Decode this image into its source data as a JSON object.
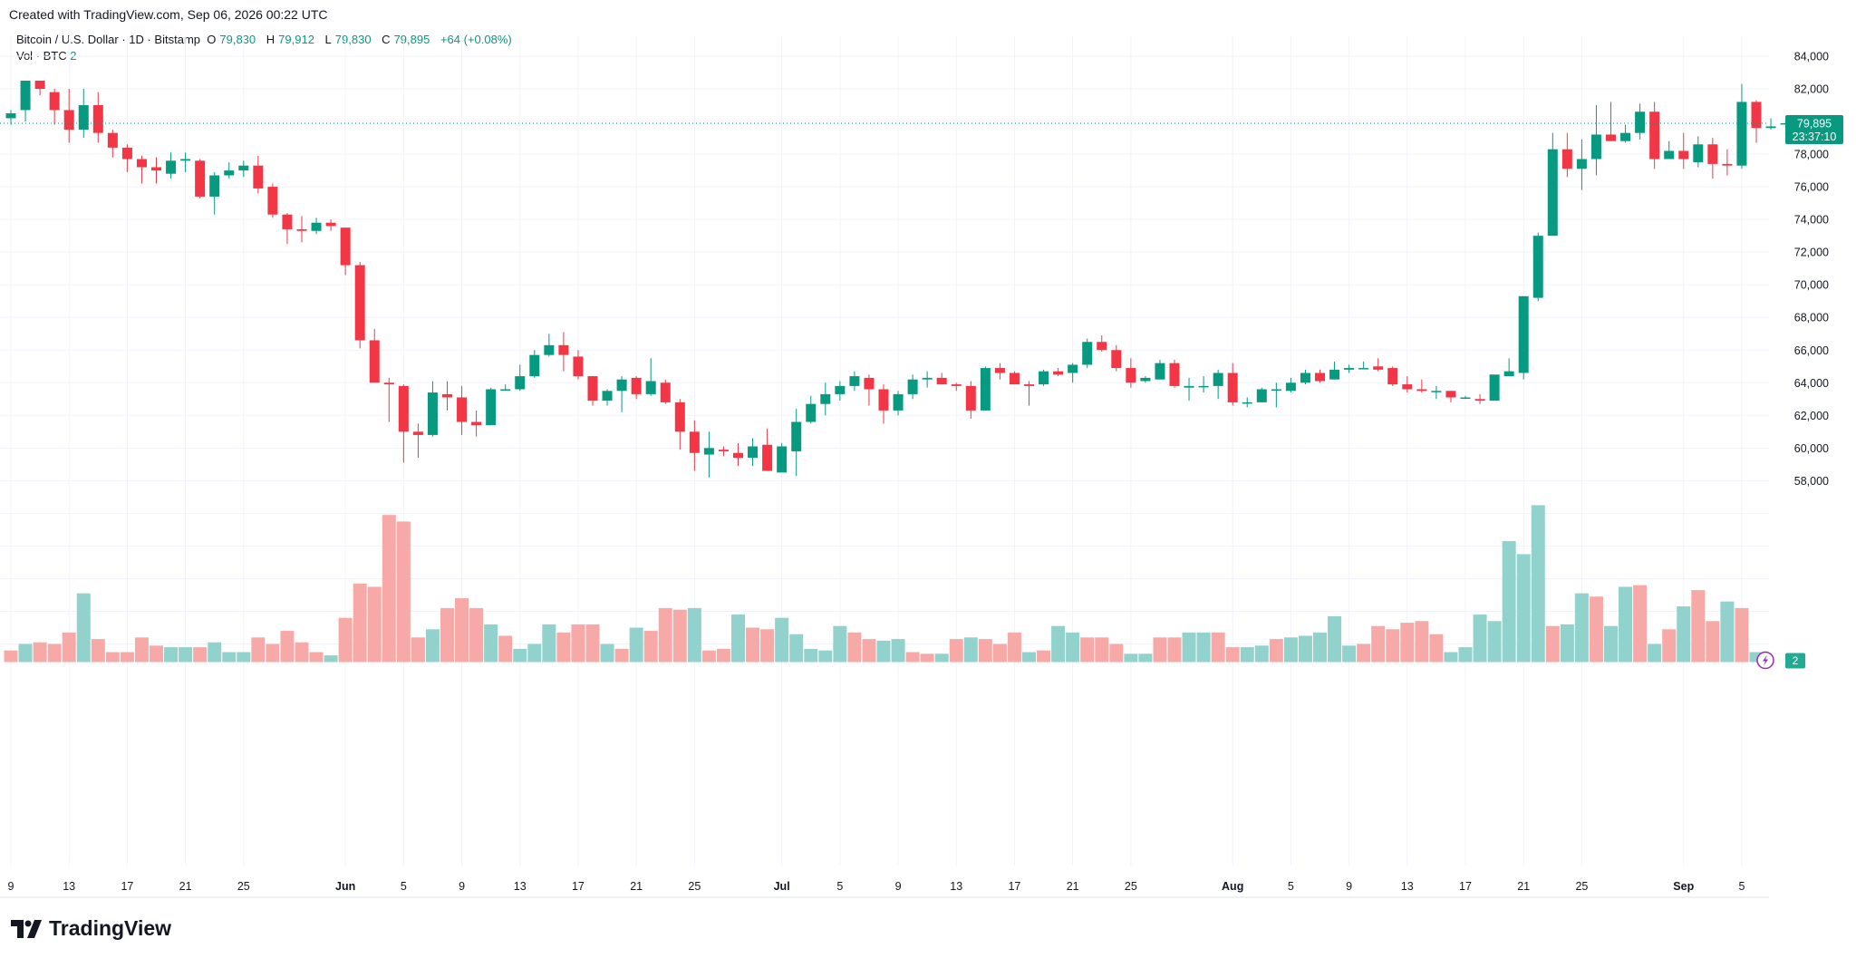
{
  "header": {
    "created_text": "Created with TradingView.com, Sep 06, 2026 00:22 UTC"
  },
  "legend": {
    "symbol": "Bitcoin / U.S. Dollar · 1D · Bitstamp",
    "open_label": "O",
    "open_value": "79,830",
    "high_label": "H",
    "high_value": "79,912",
    "low_label": "L",
    "low_value": "79,830",
    "close_label": "C",
    "close_value": "79,895",
    "change": "+64 (+0.08%)",
    "volume_label": "Vol · BTC",
    "volume_value": "2"
  },
  "price_tag": {
    "price": "79,895",
    "countdown": "23:37:10"
  },
  "volume_tag": "2",
  "brand": "TradingView",
  "colors": {
    "up": "#089981",
    "down": "#F23645",
    "vol_up": "#92D2CC",
    "vol_down": "#F7A9A7",
    "grid": "#F0F3FA",
    "axis_text": "#131722"
  },
  "chart_data": {
    "type": "candlestick",
    "ylim": [
      57000,
      85000
    ],
    "y_ticks": [
      58000,
      60000,
      62000,
      64000,
      66000,
      68000,
      70000,
      72000,
      74000,
      76000,
      78000,
      80000,
      82000,
      84000
    ],
    "y_tick_labels": [
      "58,000",
      "60,000",
      "62,000",
      "64,000",
      "66,000",
      "68,000",
      "70,000",
      "72,000",
      "74,000",
      "76,000",
      "78,000",
      "80,000",
      "82,000",
      "84,000"
    ],
    "vol_ticks": [
      48000,
      50000,
      52000,
      54000,
      56000
    ],
    "x_ticks": [
      {
        "i": 0,
        "label": "9"
      },
      {
        "i": 4,
        "label": "13"
      },
      {
        "i": 8,
        "label": "17"
      },
      {
        "i": 12,
        "label": "21"
      },
      {
        "i": 16,
        "label": "25"
      },
      {
        "i": 23,
        "label": "Jun"
      },
      {
        "i": 27,
        "label": "5"
      },
      {
        "i": 31,
        "label": "9"
      },
      {
        "i": 35,
        "label": "13"
      },
      {
        "i": 39,
        "label": "17"
      },
      {
        "i": 43,
        "label": "21"
      },
      {
        "i": 47,
        "label": "25"
      },
      {
        "i": 53,
        "label": "Jul"
      },
      {
        "i": 57,
        "label": "5"
      },
      {
        "i": 61,
        "label": "9"
      },
      {
        "i": 65,
        "label": "13"
      },
      {
        "i": 69,
        "label": "17"
      },
      {
        "i": 73,
        "label": "21"
      },
      {
        "i": 77,
        "label": "25"
      },
      {
        "i": 84,
        "label": "Aug"
      },
      {
        "i": 88,
        "label": "5"
      },
      {
        "i": 92,
        "label": "9"
      },
      {
        "i": 96,
        "label": "13"
      },
      {
        "i": 100,
        "label": "17"
      },
      {
        "i": 104,
        "label": "21"
      },
      {
        "i": 108,
        "label": "25"
      },
      {
        "i": 115,
        "label": "Sep"
      },
      {
        "i": 119,
        "label": "5"
      }
    ],
    "bold_tick_labels": [
      "Jun",
      "Jul",
      "Aug",
      "Sep"
    ],
    "last_price": 79895,
    "candles": [
      [
        80200,
        80500,
        79800,
        80700
      ],
      [
        80700,
        82500,
        80000,
        82500
      ],
      [
        82500,
        82000,
        81600,
        82500
      ],
      [
        81800,
        80700,
        79800,
        82000
      ],
      [
        80700,
        79500,
        78700,
        82000
      ],
      [
        79500,
        81000,
        79000,
        82000
      ],
      [
        81000,
        79300,
        78700,
        81800
      ],
      [
        79300,
        78400,
        77800,
        79500
      ],
      [
        78400,
        77700,
        76900,
        78600
      ],
      [
        77700,
        77200,
        76200,
        77900
      ],
      [
        77200,
        77000,
        76200,
        77800
      ],
      [
        76800,
        77600,
        76500,
        78100
      ],
      [
        77600,
        77700,
        76900,
        78100
      ],
      [
        77600,
        75400,
        75300,
        77700
      ],
      [
        75400,
        76700,
        74300,
        76900
      ],
      [
        76700,
        77000,
        76500,
        77500
      ],
      [
        77000,
        77300,
        76600,
        77600
      ],
      [
        77300,
        75900,
        75600,
        77900
      ],
      [
        76000,
        74300,
        74100,
        76200
      ],
      [
        74300,
        73400,
        72500,
        74400
      ],
      [
        73400,
        73300,
        72600,
        74200
      ],
      [
        73300,
        73800,
        73100,
        74100
      ],
      [
        73800,
        73600,
        73300,
        74000
      ],
      [
        73500,
        71200,
        70600,
        73500
      ],
      [
        71200,
        66600,
        66100,
        71400
      ],
      [
        66600,
        64000,
        64000,
        67300
      ],
      [
        64000,
        63900,
        61600,
        64300
      ],
      [
        63800,
        61000,
        59100,
        63900
      ],
      [
        61000,
        60800,
        59400,
        61500
      ],
      [
        60800,
        63400,
        60700,
        64100
      ],
      [
        63300,
        63100,
        62300,
        64100
      ],
      [
        63100,
        61600,
        60800,
        63800
      ],
      [
        61600,
        61400,
        60700,
        62300
      ],
      [
        61400,
        63600,
        61400,
        63700
      ],
      [
        63600,
        63600,
        63500,
        63900
      ],
      [
        63600,
        64400,
        63500,
        65100
      ],
      [
        64400,
        65700,
        64300,
        66000
      ],
      [
        65700,
        66300,
        65600,
        67000
      ],
      [
        66300,
        65700,
        64700,
        67100
      ],
      [
        65600,
        64400,
        64200,
        66000
      ],
      [
        64400,
        62900,
        62600,
        64400
      ],
      [
        62900,
        63500,
        62600,
        63600
      ],
      [
        63500,
        64200,
        62200,
        64400
      ],
      [
        64300,
        63300,
        63000,
        64400
      ],
      [
        63300,
        64100,
        63200,
        65500
      ],
      [
        64000,
        62800,
        62700,
        64200
      ],
      [
        62800,
        61000,
        59900,
        63000
      ],
      [
        61000,
        59700,
        58600,
        61700
      ],
      [
        59600,
        60000,
        58200,
        61000
      ],
      [
        59900,
        59800,
        59500,
        60100
      ],
      [
        59700,
        59400,
        58900,
        60300
      ],
      [
        59400,
        60100,
        58900,
        60600
      ],
      [
        60200,
        58600,
        58600,
        61200
      ],
      [
        58500,
        60100,
        58600,
        60300
      ],
      [
        59800,
        61600,
        58300,
        62400
      ],
      [
        61600,
        62700,
        61500,
        63200
      ],
      [
        62700,
        63300,
        62000,
        64000
      ],
      [
        63300,
        63800,
        62900,
        64100
      ],
      [
        63800,
        64400,
        63500,
        64700
      ],
      [
        64300,
        63600,
        62600,
        64500
      ],
      [
        63600,
        62300,
        61500,
        63900
      ],
      [
        62300,
        63300,
        62000,
        63500
      ],
      [
        63300,
        64200,
        63000,
        64500
      ],
      [
        64200,
        64300,
        63700,
        64700
      ],
      [
        64300,
        63900,
        63900,
        64600
      ],
      [
        63900,
        63800,
        63500,
        64000
      ],
      [
        63800,
        62300,
        61800,
        64100
      ],
      [
        62300,
        64900,
        62300,
        65000
      ],
      [
        64900,
        64600,
        64200,
        65200
      ],
      [
        64600,
        63900,
        63900,
        64700
      ],
      [
        63900,
        63800,
        62600,
        64100
      ],
      [
        63900,
        64700,
        63800,
        64800
      ],
      [
        64700,
        64500,
        64400,
        64900
      ],
      [
        64600,
        65100,
        64000,
        65200
      ],
      [
        65100,
        66500,
        64900,
        66700
      ],
      [
        66500,
        66000,
        65900,
        66900
      ],
      [
        66000,
        64900,
        64700,
        66300
      ],
      [
        64900,
        64000,
        63700,
        65500
      ],
      [
        64100,
        64300,
        64000,
        64400
      ],
      [
        64200,
        65200,
        64200,
        65400
      ],
      [
        65200,
        63800,
        63700,
        65400
      ],
      [
        63700,
        63800,
        62900,
        64300
      ],
      [
        63800,
        63800,
        63400,
        64400
      ],
      [
        63800,
        64600,
        63000,
        64800
      ],
      [
        64600,
        62800,
        62600,
        65200
      ],
      [
        62800,
        62800,
        62500,
        63100
      ],
      [
        62800,
        63600,
        62800,
        63700
      ],
      [
        63600,
        63600,
        62500,
        64000
      ],
      [
        63500,
        64000,
        63400,
        64300
      ],
      [
        64000,
        64600,
        63900,
        64800
      ],
      [
        64600,
        64100,
        64000,
        64800
      ],
      [
        64200,
        64800,
        64200,
        65300
      ],
      [
        64800,
        64900,
        64600,
        65100
      ],
      [
        64900,
        64900,
        64900,
        65300
      ],
      [
        65000,
        64800,
        64700,
        65500
      ],
      [
        64900,
        63900,
        63800,
        65000
      ],
      [
        63900,
        63600,
        63400,
        64400
      ],
      [
        63600,
        63500,
        63400,
        64200
      ],
      [
        63500,
        63500,
        63000,
        63800
      ],
      [
        63500,
        63100,
        62800,
        63500
      ],
      [
        63100,
        63100,
        63000,
        63200
      ],
      [
        63000,
        62900,
        62700,
        63300
      ],
      [
        62900,
        64500,
        62900,
        64500
      ],
      [
        64400,
        64700,
        64500,
        65500
      ],
      [
        64600,
        69300,
        64200,
        69300
      ],
      [
        69200,
        73000,
        69000,
        73200
      ],
      [
        73000,
        78300,
        73000,
        79300
      ],
      [
        78300,
        77100,
        76600,
        79300
      ],
      [
        77100,
        77700,
        75800,
        78900
      ],
      [
        77700,
        79200,
        76700,
        81000
      ],
      [
        79200,
        78800,
        78800,
        81200
      ],
      [
        78800,
        79300,
        78700,
        79800
      ],
      [
        79300,
        80600,
        78900,
        81100
      ],
      [
        80600,
        77700,
        77100,
        81200
      ],
      [
        77700,
        78200,
        77700,
        78800
      ],
      [
        78200,
        77700,
        77100,
        79300
      ],
      [
        77500,
        78600,
        77200,
        79100
      ],
      [
        78600,
        77400,
        76500,
        79000
      ],
      [
        77400,
        77300,
        76700,
        78300
      ],
      [
        77300,
        81200,
        77100,
        82300
      ],
      [
        81200,
        79600,
        78700,
        81300
      ],
      [
        79600,
        79700,
        79500,
        80200
      ],
      [
        79830,
        79895,
        79830,
        79912
      ]
    ],
    "volumes": [
      [
        47600,
        0
      ],
      [
        48000,
        1
      ],
      [
        48100,
        0
      ],
      [
        48000,
        0
      ],
      [
        48700,
        0
      ],
      [
        51100,
        1
      ],
      [
        48300,
        0
      ],
      [
        47500,
        0
      ],
      [
        47500,
        0
      ],
      [
        48400,
        0
      ],
      [
        47900,
        0
      ],
      [
        47800,
        1
      ],
      [
        47800,
        1
      ],
      [
        47800,
        0
      ],
      [
        48100,
        1
      ],
      [
        47500,
        1
      ],
      [
        47500,
        1
      ],
      [
        48400,
        0
      ],
      [
        48000,
        0
      ],
      [
        48800,
        0
      ],
      [
        48100,
        0
      ],
      [
        47500,
        0
      ],
      [
        47300,
        1
      ],
      [
        49600,
        0
      ],
      [
        51700,
        0
      ],
      [
        51500,
        0
      ],
      [
        55900,
        0
      ],
      [
        55500,
        0
      ],
      [
        48400,
        0
      ],
      [
        48900,
        1
      ],
      [
        50200,
        0
      ],
      [
        50800,
        0
      ],
      [
        50200,
        0
      ],
      [
        49200,
        1
      ],
      [
        48500,
        0
      ],
      [
        47700,
        1
      ],
      [
        48000,
        1
      ],
      [
        49200,
        1
      ],
      [
        48700,
        0
      ],
      [
        49200,
        0
      ],
      [
        49200,
        0
      ],
      [
        48000,
        1
      ],
      [
        47700,
        0
      ],
      [
        49000,
        1
      ],
      [
        48800,
        0
      ],
      [
        50200,
        0
      ],
      [
        50100,
        0
      ],
      [
        50200,
        1
      ],
      [
        47600,
        0
      ],
      [
        47700,
        0
      ],
      [
        49800,
        1
      ],
      [
        49000,
        0
      ],
      [
        48900,
        0
      ],
      [
        49600,
        1
      ],
      [
        48600,
        1
      ],
      [
        47700,
        1
      ],
      [
        47600,
        1
      ],
      [
        49100,
        1
      ],
      [
        48700,
        0
      ],
      [
        48300,
        0
      ],
      [
        48200,
        1
      ],
      [
        48300,
        1
      ],
      [
        47500,
        0
      ],
      [
        47400,
        0
      ],
      [
        47400,
        1
      ],
      [
        48300,
        0
      ],
      [
        48400,
        1
      ],
      [
        48300,
        0
      ],
      [
        48000,
        0
      ],
      [
        48700,
        0
      ],
      [
        47500,
        1
      ],
      [
        47600,
        0
      ],
      [
        49100,
        1
      ],
      [
        48700,
        1
      ],
      [
        48400,
        0
      ],
      [
        48400,
        0
      ],
      [
        48000,
        0
      ],
      [
        47400,
        1
      ],
      [
        47400,
        1
      ],
      [
        48400,
        0
      ],
      [
        48400,
        0
      ],
      [
        48700,
        1
      ],
      [
        48700,
        1
      ],
      [
        48700,
        0
      ],
      [
        47800,
        0
      ],
      [
        47800,
        1
      ],
      [
        47900,
        1
      ],
      [
        48300,
        0
      ],
      [
        48400,
        1
      ],
      [
        48500,
        1
      ],
      [
        48700,
        1
      ],
      [
        49700,
        1
      ],
      [
        47900,
        1
      ],
      [
        48000,
        0
      ],
      [
        49100,
        0
      ],
      [
        48900,
        0
      ],
      [
        49300,
        0
      ],
      [
        49400,
        0
      ],
      [
        48600,
        0
      ],
      [
        47500,
        1
      ],
      [
        47800,
        1
      ],
      [
        49800,
        1
      ],
      [
        49400,
        1
      ],
      [
        54300,
        1
      ],
      [
        53500,
        1
      ],
      [
        56500,
        1
      ],
      [
        49100,
        0
      ],
      [
        49200,
        1
      ],
      [
        51100,
        1
      ],
      [
        50900,
        0
      ],
      [
        49100,
        1
      ],
      [
        51500,
        1
      ],
      [
        51600,
        0
      ],
      [
        48000,
        1
      ],
      [
        48900,
        0
      ],
      [
        50300,
        1
      ],
      [
        51300,
        0
      ],
      [
        49400,
        0
      ],
      [
        50600,
        1
      ],
      [
        50200,
        0
      ],
      [
        47500,
        1
      ]
    ]
  }
}
